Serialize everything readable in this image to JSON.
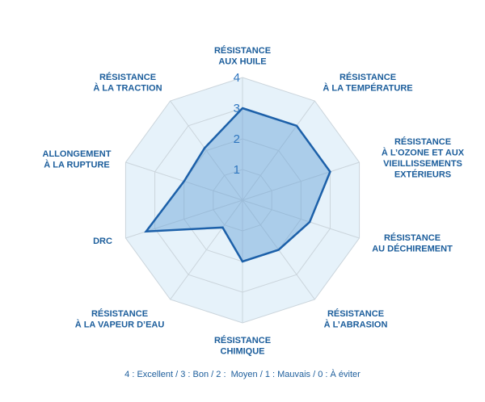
{
  "chart_data": {
    "type": "radar",
    "categories": [
      [
        "RÉSISTANCE",
        "AUX HUILE"
      ],
      [
        "RÉSISTANCE",
        "À LA TEMPÉRATURE"
      ],
      [
        "RÉSISTANCE",
        "À L’OZONE ET AUX",
        "VIEILLISSEMENTS",
        "EXTÉRIEURS"
      ],
      [
        "RÉSISTANCE",
        "AU DÉCHIREMENT"
      ],
      [
        "RÉSISTANCE",
        "À L’ABRASION"
      ],
      [
        "RÉSISTANCE",
        "CHIMIQUE"
      ],
      [
        "RÉSISTANCE",
        "À LA VAPEUR D’EAU"
      ],
      [
        "DRC"
      ],
      [
        "ALLONGEMENT",
        "À LA RUPTURE"
      ],
      [
        "RÉSISTANCE",
        "À LA TRACTION"
      ]
    ],
    "values": [
      3,
      3,
      3,
      2.3,
      2,
      2,
      1.1,
      3.3,
      2,
      2.1
    ],
    "rlim": [
      0,
      4
    ],
    "ticks": [
      1,
      2,
      3,
      4
    ],
    "grid": true,
    "note": "4 : Excellent / 3 : Bon / 2 :  Moyen / 1 : Mauvais / 0 : À éviter",
    "colors": {
      "axis_label": "#1b5d9b",
      "tick_label": "#2f76bf",
      "grid_fill": "#e6f2fa",
      "grid_line": "#cbd5dc",
      "series_stroke": "#1c60a9",
      "series_fill": "#5b9bd5",
      "note_text": "#1d5e9c"
    }
  }
}
